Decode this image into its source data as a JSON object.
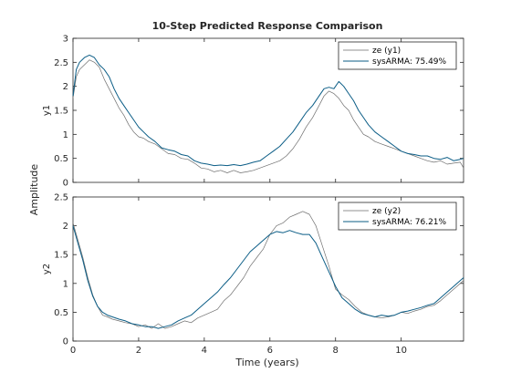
{
  "chart_data": {
    "type": "line",
    "title": "10-Step Predicted Response Comparison",
    "xlabel": "Time (years)",
    "shared_ylabel": "Amplitude",
    "xlim": [
      0,
      11.9
    ],
    "xticks": [
      0,
      2,
      4,
      6,
      8,
      10
    ],
    "grid": false,
    "legend_placement": "top-right",
    "colors": {
      "measured": "#6e6e6e",
      "predicted": "#0b5d86",
      "axes": "#262626"
    },
    "subplots": [
      {
        "ylabel": "y1",
        "ylim": [
          0,
          3
        ],
        "yticks": [
          0,
          0.5,
          1,
          1.5,
          2,
          2.5,
          3
        ],
        "series": [
          {
            "name": "ze (y1)",
            "role": "measured",
            "x": [
              0,
              0.1,
              0.2,
              0.35,
              0.5,
              0.65,
              0.8,
              0.95,
              1.1,
              1.25,
              1.4,
              1.55,
              1.7,
              1.85,
              2.0,
              2.15,
              2.3,
              2.5,
              2.7,
              2.9,
              3.1,
              3.3,
              3.5,
              3.7,
              3.9,
              4.1,
              4.3,
              4.5,
              4.7,
              4.9,
              5.1,
              5.3,
              5.5,
              5.7,
              5.9,
              6.1,
              6.3,
              6.5,
              6.7,
              6.9,
              7.1,
              7.3,
              7.5,
              7.65,
              7.8,
              7.95,
              8.1,
              8.25,
              8.4,
              8.55,
              8.7,
              8.85,
              9.0,
              9.2,
              9.4,
              9.6,
              9.8,
              10.0,
              10.2,
              10.4,
              10.6,
              10.8,
              11.0,
              11.2,
              11.4,
              11.6,
              11.8,
              11.9
            ],
            "y": [
              1.75,
              2.2,
              2.35,
              2.45,
              2.55,
              2.5,
              2.4,
              2.15,
              1.95,
              1.75,
              1.55,
              1.4,
              1.2,
              1.05,
              0.95,
              0.92,
              0.85,
              0.8,
              0.7,
              0.6,
              0.58,
              0.5,
              0.48,
              0.4,
              0.3,
              0.28,
              0.22,
              0.25,
              0.2,
              0.25,
              0.2,
              0.22,
              0.25,
              0.3,
              0.35,
              0.4,
              0.45,
              0.55,
              0.7,
              0.9,
              1.15,
              1.35,
              1.6,
              1.8,
              1.9,
              1.85,
              1.75,
              1.6,
              1.5,
              1.3,
              1.15,
              1.0,
              0.95,
              0.85,
              0.8,
              0.75,
              0.7,
              0.65,
              0.6,
              0.55,
              0.5,
              0.45,
              0.42,
              0.45,
              0.38,
              0.4,
              0.42,
              0.3
            ]
          },
          {
            "name": "sysARMA: 75.49%",
            "role": "predicted",
            "x": [
              0,
              0.1,
              0.2,
              0.35,
              0.5,
              0.65,
              0.8,
              0.95,
              1.1,
              1.25,
              1.4,
              1.55,
              1.7,
              1.85,
              2.0,
              2.15,
              2.3,
              2.5,
              2.7,
              2.9,
              3.1,
              3.3,
              3.5,
              3.7,
              3.9,
              4.1,
              4.3,
              4.5,
              4.7,
              4.9,
              5.1,
              5.3,
              5.5,
              5.7,
              5.9,
              6.1,
              6.3,
              6.5,
              6.7,
              6.9,
              7.1,
              7.3,
              7.5,
              7.65,
              7.8,
              7.95,
              8.1,
              8.25,
              8.4,
              8.55,
              8.7,
              8.85,
              9.0,
              9.2,
              9.4,
              9.6,
              9.8,
              10.0,
              10.2,
              10.4,
              10.6,
              10.8,
              11.0,
              11.2,
              11.4,
              11.6,
              11.8,
              11.9
            ],
            "y": [
              1.8,
              2.35,
              2.5,
              2.6,
              2.65,
              2.6,
              2.45,
              2.35,
              2.2,
              1.95,
              1.75,
              1.6,
              1.45,
              1.3,
              1.15,
              1.05,
              0.95,
              0.85,
              0.72,
              0.68,
              0.65,
              0.58,
              0.55,
              0.45,
              0.4,
              0.38,
              0.35,
              0.36,
              0.35,
              0.37,
              0.35,
              0.38,
              0.42,
              0.45,
              0.55,
              0.65,
              0.75,
              0.9,
              1.05,
              1.25,
              1.45,
              1.6,
              1.8,
              1.95,
              1.98,
              1.95,
              2.1,
              2.0,
              1.85,
              1.7,
              1.5,
              1.35,
              1.2,
              1.05,
              0.95,
              0.85,
              0.75,
              0.65,
              0.6,
              0.58,
              0.55,
              0.55,
              0.5,
              0.48,
              0.52,
              0.45,
              0.48,
              0.5
            ]
          }
        ]
      },
      {
        "ylabel": "y2",
        "ylim": [
          0,
          2.5
        ],
        "yticks": [
          0,
          0.5,
          1,
          1.5,
          2,
          2.5
        ],
        "series": [
          {
            "name": "ze (y2)",
            "role": "measured",
            "x": [
              0,
              0.15,
              0.3,
              0.45,
              0.6,
              0.75,
              0.9,
              1.05,
              1.2,
              1.4,
              1.6,
              1.8,
              2.0,
              2.2,
              2.4,
              2.6,
              2.8,
              3.0,
              3.2,
              3.4,
              3.6,
              3.8,
              4.0,
              4.2,
              4.4,
              4.6,
              4.8,
              5.0,
              5.2,
              5.4,
              5.6,
              5.8,
              6.0,
              6.2,
              6.4,
              6.6,
              6.8,
              7.0,
              7.2,
              7.4,
              7.6,
              7.8,
              8.0,
              8.2,
              8.4,
              8.6,
              8.8,
              9.0,
              9.2,
              9.4,
              9.6,
              9.8,
              10.0,
              10.2,
              10.4,
              10.6,
              10.8,
              11.0,
              11.2,
              11.4,
              11.6,
              11.8,
              11.9
            ],
            "y": [
              2.05,
              1.75,
              1.45,
              1.1,
              0.8,
              0.6,
              0.45,
              0.42,
              0.38,
              0.35,
              0.32,
              0.3,
              0.25,
              0.28,
              0.22,
              0.3,
              0.22,
              0.25,
              0.3,
              0.35,
              0.32,
              0.4,
              0.45,
              0.5,
              0.55,
              0.7,
              0.8,
              0.95,
              1.1,
              1.3,
              1.45,
              1.6,
              1.85,
              2.0,
              2.05,
              2.15,
              2.2,
              2.25,
              2.2,
              2.0,
              1.65,
              1.3,
              0.9,
              0.8,
              0.72,
              0.6,
              0.5,
              0.45,
              0.42,
              0.4,
              0.42,
              0.45,
              0.5,
              0.48,
              0.52,
              0.55,
              0.6,
              0.62,
              0.7,
              0.8,
              0.9,
              1.0,
              1.05
            ]
          },
          {
            "name": "sysARMA: 76.21%",
            "role": "predicted",
            "x": [
              0,
              0.15,
              0.3,
              0.45,
              0.6,
              0.75,
              0.9,
              1.05,
              1.2,
              1.4,
              1.6,
              1.8,
              2.0,
              2.2,
              2.4,
              2.6,
              2.8,
              3.0,
              3.2,
              3.4,
              3.6,
              3.8,
              4.0,
              4.2,
              4.4,
              4.6,
              4.8,
              5.0,
              5.2,
              5.4,
              5.6,
              5.8,
              6.0,
              6.2,
              6.4,
              6.6,
              6.8,
              7.0,
              7.2,
              7.4,
              7.6,
              7.8,
              8.0,
              8.2,
              8.4,
              8.6,
              8.8,
              9.0,
              9.2,
              9.4,
              9.6,
              9.8,
              10.0,
              10.2,
              10.4,
              10.6,
              10.8,
              11.0,
              11.2,
              11.4,
              11.6,
              11.8,
              11.9
            ],
            "y": [
              2.0,
              1.7,
              1.4,
              1.05,
              0.78,
              0.6,
              0.5,
              0.45,
              0.42,
              0.38,
              0.35,
              0.3,
              0.28,
              0.25,
              0.25,
              0.22,
              0.25,
              0.28,
              0.35,
              0.4,
              0.45,
              0.55,
              0.65,
              0.75,
              0.85,
              0.98,
              1.1,
              1.25,
              1.4,
              1.55,
              1.65,
              1.75,
              1.85,
              1.9,
              1.88,
              1.92,
              1.88,
              1.85,
              1.85,
              1.7,
              1.45,
              1.2,
              0.95,
              0.75,
              0.65,
              0.55,
              0.48,
              0.45,
              0.42,
              0.45,
              0.43,
              0.45,
              0.5,
              0.52,
              0.55,
              0.58,
              0.62,
              0.65,
              0.75,
              0.85,
              0.95,
              1.05,
              1.1
            ]
          }
        ]
      }
    ]
  }
}
